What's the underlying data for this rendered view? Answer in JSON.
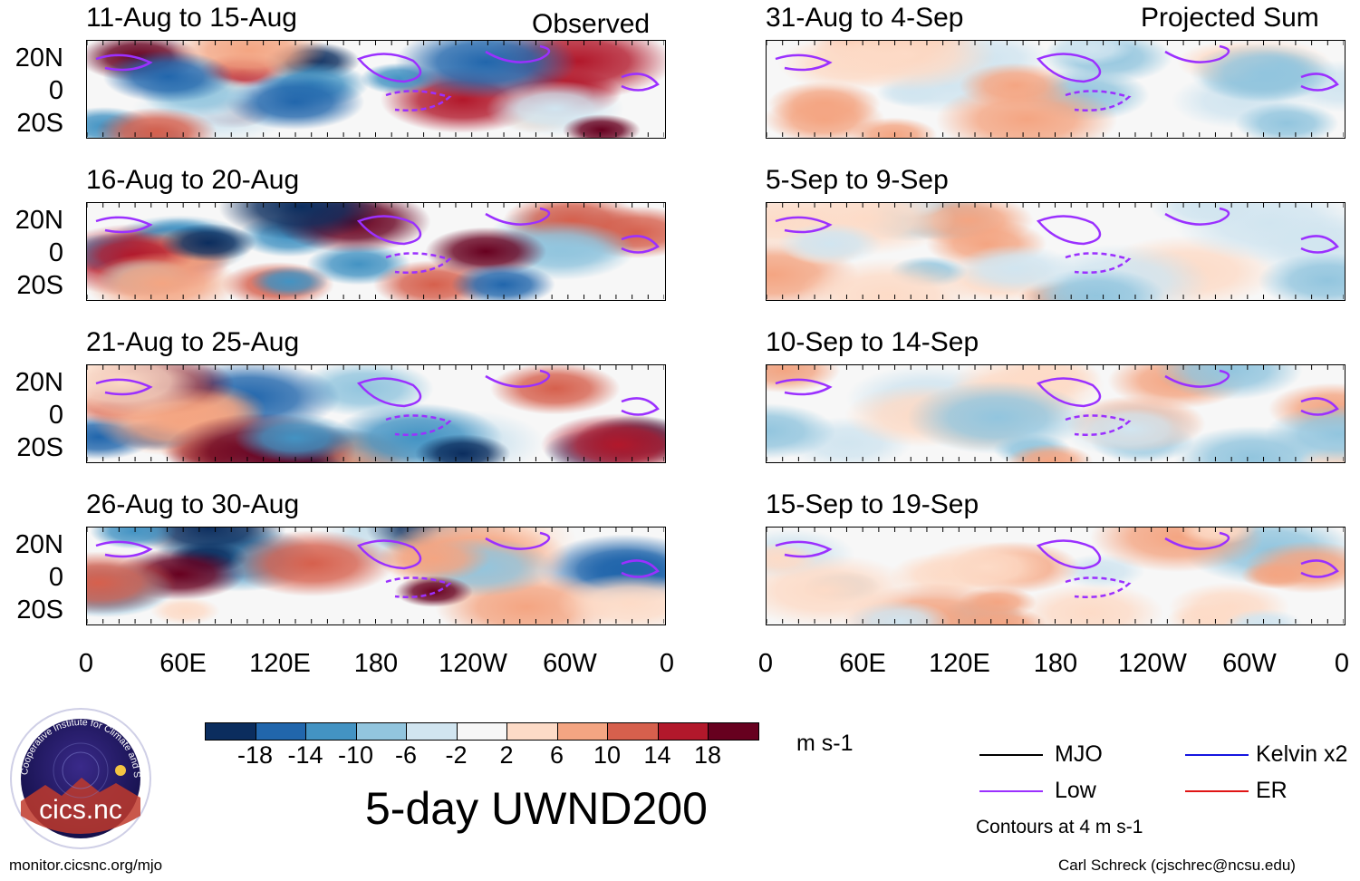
{
  "headers": {
    "observed": "Observed",
    "projected": "Projected Sum"
  },
  "panels_observed": [
    "11-Aug to 15-Aug",
    "16-Aug to 20-Aug",
    "21-Aug to 25-Aug",
    "26-Aug to 30-Aug"
  ],
  "panels_projected": [
    "31-Aug to 4-Sep",
    "5-Sep to 9-Sep",
    "10-Sep to 14-Sep",
    "15-Sep to 19-Sep"
  ],
  "lat_labels": [
    "20N",
    "0",
    "20S"
  ],
  "lon_labels": [
    "0",
    "60E",
    "120E",
    "180",
    "120W",
    "60W",
    "0"
  ],
  "colorbar": {
    "colors": [
      "#0b2d5e",
      "#2166ac",
      "#4393c3",
      "#92c5de",
      "#d1e5f0",
      "#f7f7f7",
      "#fddbc7",
      "#f4a582",
      "#d6604d",
      "#b2182b",
      "#67001f"
    ],
    "labels": [
      "-18",
      "-14",
      "-10",
      "-6",
      "-2",
      "2",
      "6",
      "10",
      "14",
      "18"
    ],
    "units": "m s-1"
  },
  "title": "5-day UWND200",
  "legend": {
    "mjo": "MJO",
    "low": "Low",
    "kelvin": "Kelvin x2",
    "er": "ER",
    "mjo_color": "#000000",
    "low_color": "#9b30ff",
    "kelvin_color": "#1515e0",
    "er_color": "#e01515",
    "contours": "Contours at 4 m s-1"
  },
  "logo": {
    "text": "cics.nc",
    "ring_text": "Cooperative Institute for Climate and Satellites"
  },
  "footer": {
    "left": "monitor.cicsnc.org/mjo",
    "right": "Carl Schreck (cjschrec@ncsu.edu)"
  }
}
